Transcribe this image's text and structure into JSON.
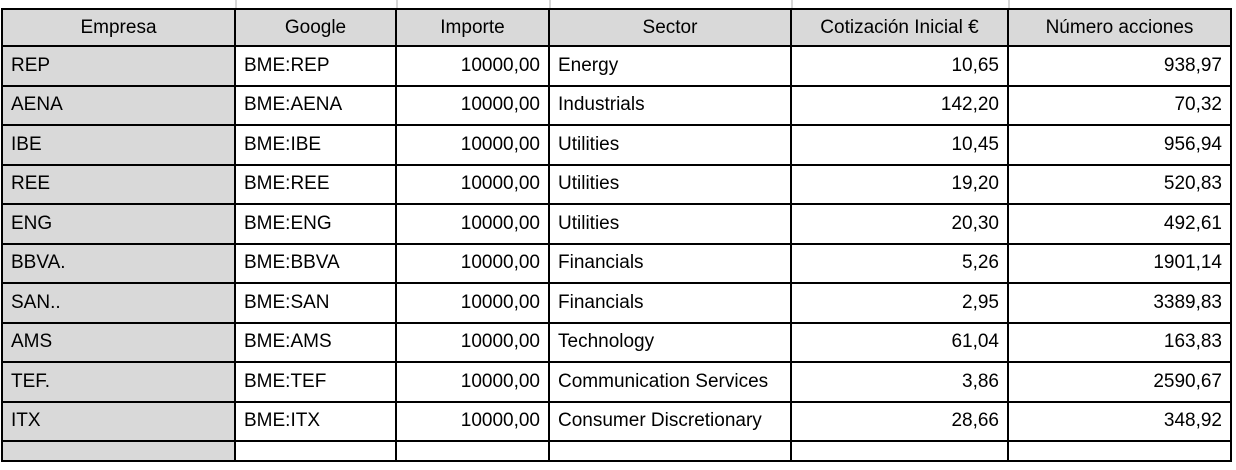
{
  "colors": {
    "header_bg": "#d9d9d9",
    "first_column_bg": "#d9d9d9",
    "cell_bg": "#ffffff",
    "border": "#000000",
    "gridline": "#d6d6d6",
    "text": "#000000"
  },
  "table": {
    "columns": [
      "Empresa",
      "Google",
      "Importe",
      "Sector",
      "Cotización Inicial €",
      "Número acciones"
    ],
    "rows": [
      [
        "REP",
        "BME:REP",
        "10000,00",
        "Energy",
        "10,65",
        "938,97"
      ],
      [
        "AENA",
        "BME:AENA",
        "10000,00",
        "Industrials",
        "142,20",
        "70,32"
      ],
      [
        "IBE",
        "BME:IBE",
        "10000,00",
        "Utilities",
        "10,45",
        "956,94"
      ],
      [
        "REE",
        "BME:REE",
        "10000,00",
        "Utilities",
        "19,20",
        "520,83"
      ],
      [
        "ENG",
        "BME:ENG",
        "10000,00",
        "Utilities",
        "20,30",
        "492,61"
      ],
      [
        "BBVA.",
        "BME:BBVA",
        "10000,00",
        "Financials",
        "5,26",
        "1901,14"
      ],
      [
        "SAN..",
        "BME:SAN",
        "10000,00",
        "Financials",
        "2,95",
        "3389,83"
      ],
      [
        "AMS",
        "BME:AMS",
        "10000,00",
        "Technology",
        "61,04",
        "163,83"
      ],
      [
        "TEF.",
        "BME:TEF",
        "10000,00",
        "Communication Services",
        "3,86",
        "2590,67"
      ],
      [
        "ITX",
        "BME:ITX",
        "10000,00",
        "Consumer Discretionary",
        "28,66",
        "348,92"
      ]
    ]
  }
}
